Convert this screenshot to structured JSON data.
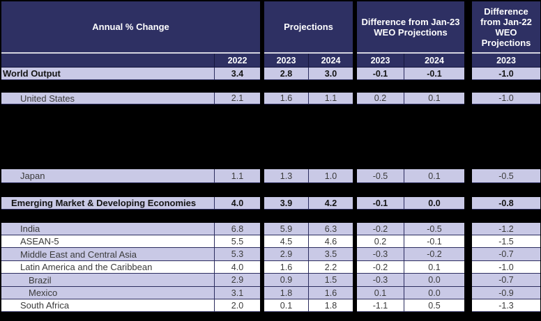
{
  "table": {
    "colors": {
      "header_navy": "#2e3063",
      "row_lavender": "#c9c9e6",
      "row_white": "#ffffff",
      "grid_line": "#2b2c5e",
      "separator_light": "#d5d5df",
      "header_text": "#ffffff",
      "body_text": "#3a3a3a",
      "page_background": "#000000"
    },
    "sections": [
      {
        "id": "annual-change",
        "header": "Annual % Change",
        "years": [
          "",
          "2022"
        ]
      },
      {
        "id": "projections",
        "header": "Projections",
        "years": [
          "2023",
          "2024"
        ]
      },
      {
        "id": "diff-jan23",
        "header": "Difference from Jan-23 WEO Projections",
        "years": [
          "2023",
          "2024"
        ]
      },
      {
        "id": "diff-jan22",
        "header": "Difference from Jan-22 WEO Projections",
        "years": [
          "2023"
        ]
      }
    ],
    "rows": [
      {
        "label": "World Output",
        "indent": 0,
        "bold": true,
        "shade": "lavender",
        "values": [
          "3.4",
          "2.8",
          "3.0",
          "-0.1",
          "-0.1",
          "-1.0"
        ]
      },
      {
        "label": "United States",
        "indent": 2,
        "bold": false,
        "shade": "lavender",
        "values": [
          "2.1",
          "1.6",
          "1.1",
          "0.2",
          "0.1",
          "-1.0"
        ]
      },
      {
        "label": "Japan",
        "indent": 2,
        "bold": false,
        "shade": "lavender",
        "values": [
          "1.1",
          "1.3",
          "1.0",
          "-0.5",
          "0.1",
          "-0.5"
        ]
      },
      {
        "label": "Emerging Market & Developing Economies",
        "indent": 1,
        "bold": true,
        "shade": "lavender",
        "values": [
          "4.0",
          "3.9",
          "4.2",
          "-0.1",
          "0.0",
          "-0.8"
        ]
      },
      {
        "label": "India",
        "indent": 2,
        "bold": false,
        "shade": "lavender",
        "values": [
          "6.8",
          "5.9",
          "6.3",
          "-0.2",
          "-0.5",
          "-1.2"
        ]
      },
      {
        "label": "ASEAN-5",
        "indent": 2,
        "bold": false,
        "shade": "white",
        "values": [
          "5.5",
          "4.5",
          "4.6",
          "0.2",
          "-0.1",
          "-1.5"
        ]
      },
      {
        "label": "Middle East and Central Asia",
        "indent": 2,
        "bold": false,
        "shade": "lavender",
        "values": [
          "5.3",
          "2.9",
          "3.5",
          "-0.3",
          "-0.2",
          "-0.7"
        ]
      },
      {
        "label": "Latin America and the Caribbean",
        "indent": 2,
        "bold": false,
        "shade": "white",
        "values": [
          "4.0",
          "1.6",
          "2.2",
          "-0.2",
          "0.1",
          "-1.0"
        ]
      },
      {
        "label": "Brazil",
        "indent": 3,
        "bold": false,
        "shade": "lavender",
        "values": [
          "2.9",
          "0.9",
          "1.5",
          "-0.3",
          "0.0",
          "-0.7"
        ]
      },
      {
        "label": "Mexico",
        "indent": 3,
        "bold": false,
        "shade": "lavender",
        "values": [
          "3.1",
          "1.8",
          "1.6",
          "0.1",
          "0.0",
          "-0.9"
        ]
      },
      {
        "label": "South Africa",
        "indent": 2,
        "bold": false,
        "shade": "white",
        "values": [
          "2.0",
          "0.1",
          "1.8",
          "-1.1",
          "0.5",
          "-1.3"
        ]
      }
    ]
  },
  "chart_data": {
    "type": "table",
    "title": "Annual % Change",
    "column_groups": [
      "Annual % Change",
      "Projections",
      "Difference from Jan-23 WEO Projections",
      "Difference from Jan-22 WEO Projections"
    ],
    "columns": [
      "2022",
      "2023 (Projections)",
      "2024 (Projections)",
      "2023 (Diff from Jan-23 WEO)",
      "2024 (Diff from Jan-23 WEO)",
      "2023 (Diff from Jan-22 WEO)"
    ],
    "rows": [
      {
        "label": "World Output",
        "values": [
          3.4,
          2.8,
          3.0,
          -0.1,
          -0.1,
          -1.0
        ]
      },
      {
        "label": "United States",
        "values": [
          2.1,
          1.6,
          1.1,
          0.2,
          0.1,
          -1.0
        ]
      },
      {
        "label": "Japan",
        "values": [
          1.1,
          1.3,
          1.0,
          -0.5,
          0.1,
          -0.5
        ]
      },
      {
        "label": "Emerging Market & Developing Economies",
        "values": [
          4.0,
          3.9,
          4.2,
          -0.1,
          0.0,
          -0.8
        ]
      },
      {
        "label": "India",
        "values": [
          6.8,
          5.9,
          6.3,
          -0.2,
          -0.5,
          -1.2
        ]
      },
      {
        "label": "ASEAN-5",
        "values": [
          5.5,
          4.5,
          4.6,
          0.2,
          -0.1,
          -1.5
        ]
      },
      {
        "label": "Middle East and Central Asia",
        "values": [
          5.3,
          2.9,
          3.5,
          -0.3,
          -0.2,
          -0.7
        ]
      },
      {
        "label": "Latin America and the Caribbean",
        "values": [
          4.0,
          1.6,
          2.2,
          -0.2,
          0.1,
          -1.0
        ]
      },
      {
        "label": "Brazil",
        "values": [
          2.9,
          0.9,
          1.5,
          -0.3,
          0.0,
          -0.7
        ]
      },
      {
        "label": "Mexico",
        "values": [
          3.1,
          1.8,
          1.6,
          0.1,
          0.0,
          -0.9
        ]
      },
      {
        "label": "South Africa",
        "values": [
          2.0,
          0.1,
          1.8,
          -1.1,
          0.5,
          -1.3
        ]
      }
    ],
    "notes": "Several rows of the source table are blacked out/redacted in the image."
  }
}
